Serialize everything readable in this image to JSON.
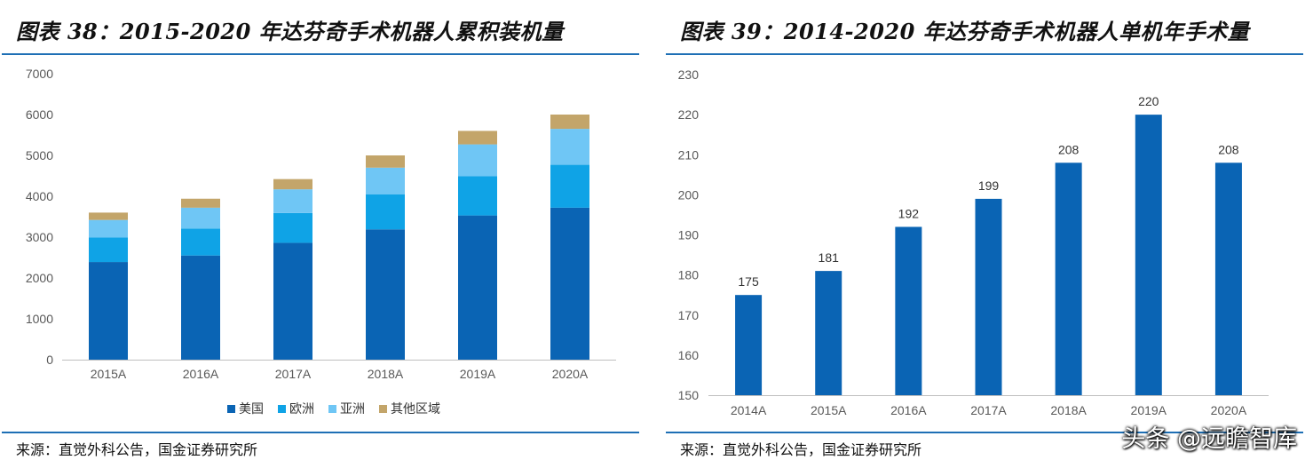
{
  "left": {
    "title": "图表 38：2015-2020 年达芬奇手术机器人累积装机量",
    "source": "来源：直觉外科公告，国金证券研究所"
  },
  "right": {
    "title": "图表 39：2014-2020 年达芬奇手术机器人单机年手术量",
    "source": "来源：直觉外科公告，国金证券研究所"
  },
  "watermark": "头条 @远瞻智库",
  "chart_data": [
    {
      "type": "bar",
      "stacked": true,
      "title": "图表 38：2015-2020 年达芬奇手术机器人累积装机量",
      "categories": [
        "2015A",
        "2016A",
        "2017A",
        "2018A",
        "2019A",
        "2020A"
      ],
      "series": [
        {
          "name": "美国",
          "color": "#0a64b4",
          "values": [
            2390,
            2550,
            2860,
            3190,
            3530,
            3720
          ]
        },
        {
          "name": "欧洲",
          "color": "#0fa3e6",
          "values": [
            600,
            660,
            730,
            860,
            960,
            1050
          ]
        },
        {
          "name": "亚洲",
          "color": "#6fc6f5",
          "values": [
            430,
            510,
            580,
            650,
            780,
            880
          ]
        },
        {
          "name": "其他区域",
          "color": "#c3a56a",
          "values": [
            180,
            220,
            250,
            300,
            330,
            350
          ]
        }
      ],
      "ylim": [
        0,
        7000
      ],
      "yticks": [
        0,
        1000,
        2000,
        3000,
        4000,
        5000,
        6000,
        7000
      ],
      "legend": "bottom",
      "grid": false
    },
    {
      "type": "bar",
      "title": "图表 39：2014-2020 年达芬奇手术机器人单机年手术量",
      "categories": [
        "2014A",
        "2015A",
        "2016A",
        "2017A",
        "2018A",
        "2019A",
        "2020A"
      ],
      "values": [
        175,
        181,
        192,
        199,
        208,
        220,
        208
      ],
      "value_labels": [
        "175",
        "181",
        "192",
        "199",
        "208",
        "220",
        "208"
      ],
      "color": "#0a64b4",
      "ylim": [
        150,
        230
      ],
      "yticks": [
        150,
        160,
        170,
        180,
        190,
        200,
        210,
        220,
        230
      ],
      "grid": false
    }
  ]
}
